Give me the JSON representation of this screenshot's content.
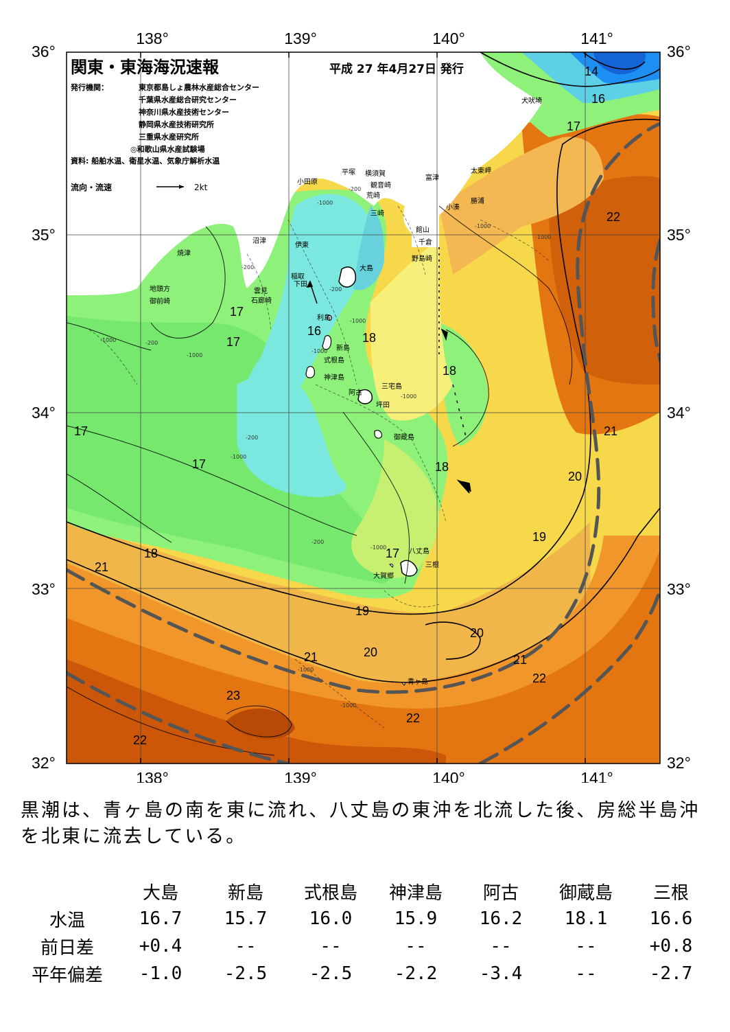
{
  "map": {
    "title": "関東・東海海況速報",
    "date": "平成 27 年4月27日 発行",
    "issuer_label": "発行機関：",
    "issuers": [
      "東京都島しょ農林水産総合センター",
      "千葉県水産総合研究センター",
      "神奈川県水産技術センター",
      "静岡県水産技術研究所",
      "三重県水産研究所",
      "◎和歌山県水産試験場"
    ],
    "source": "資料: 船舶水温、衛星水温、気象庁解析水温",
    "flow_label": "流向・流速",
    "flow_unit": "2kt",
    "lon_labels": [
      "138°",
      "139°",
      "140°",
      "141°"
    ],
    "lat_labels": [
      "36°",
      "35°",
      "34°",
      "33°",
      "32°"
    ],
    "place_names": [
      "犬吠埼",
      "太東岬",
      "勝浦",
      "小湊",
      "富津",
      "横須賀",
      "観音崎",
      "平塚",
      "荒崎",
      "三崎",
      "小田原",
      "館山",
      "千倉",
      "野島崎",
      "沼津",
      "伊東",
      "焼津",
      "稲取",
      "下田",
      "雲見",
      "石廊崎",
      "地頭方",
      "御前崎",
      "大島",
      "利島",
      "新島",
      "式根島",
      "神津島",
      "三宅島",
      "阿古",
      "坪田",
      "御蔵島",
      "八丈島",
      "三根",
      "大賀郷",
      "青ヶ島"
    ],
    "isotherm_labels": [
      "14",
      "16",
      "17",
      "22",
      "17",
      "17",
      "16",
      "18",
      "18",
      "17",
      "17",
      "18",
      "21",
      "20",
      "21",
      "19",
      "17",
      "18",
      "21",
      "19",
      "20",
      "20",
      "21",
      "22",
      "23",
      "22",
      "22"
    ],
    "depth_labels": [
      "-200",
      "-1000",
      "-200",
      "-1000",
      "-200",
      "-1000",
      "-200",
      "-1000",
      "-1000",
      "-200",
      "-1000",
      "-1000",
      "-1000",
      "-1000",
      "-200",
      "-1000",
      "-1000",
      "-1000"
    ]
  },
  "summary": "黒潮は、青ヶ島の南を東に流れ、八丈島の東沖を北流した後、房総半島沖を北東に流去している。",
  "table": {
    "columns": [
      "大島",
      "新島",
      "式根島",
      "神津島",
      "阿古",
      "御蔵島",
      "三根"
    ],
    "rows": [
      {
        "label": "水温",
        "values": [
          "16.7",
          "15.7",
          "16.0",
          "15.9",
          "16.2",
          "18.1",
          "16.6"
        ]
      },
      {
        "label": "前日差",
        "values": [
          "+0.4",
          "--",
          "--",
          "--",
          "--",
          "--",
          "+0.8"
        ]
      },
      {
        "label": "平年偏差",
        "values": [
          "-1.0",
          "-2.5",
          "-2.5",
          "-2.2",
          "-3.4",
          "--",
          "-2.7"
        ]
      }
    ]
  },
  "colors": {
    "cold": "#1e8ff2",
    "cyan": "#7ae8de",
    "green": "#8ef27a",
    "yellow": "#f6f07a",
    "orange": "#f3a13a",
    "deep": "#d0560a",
    "kuroshio": "#555555"
  }
}
